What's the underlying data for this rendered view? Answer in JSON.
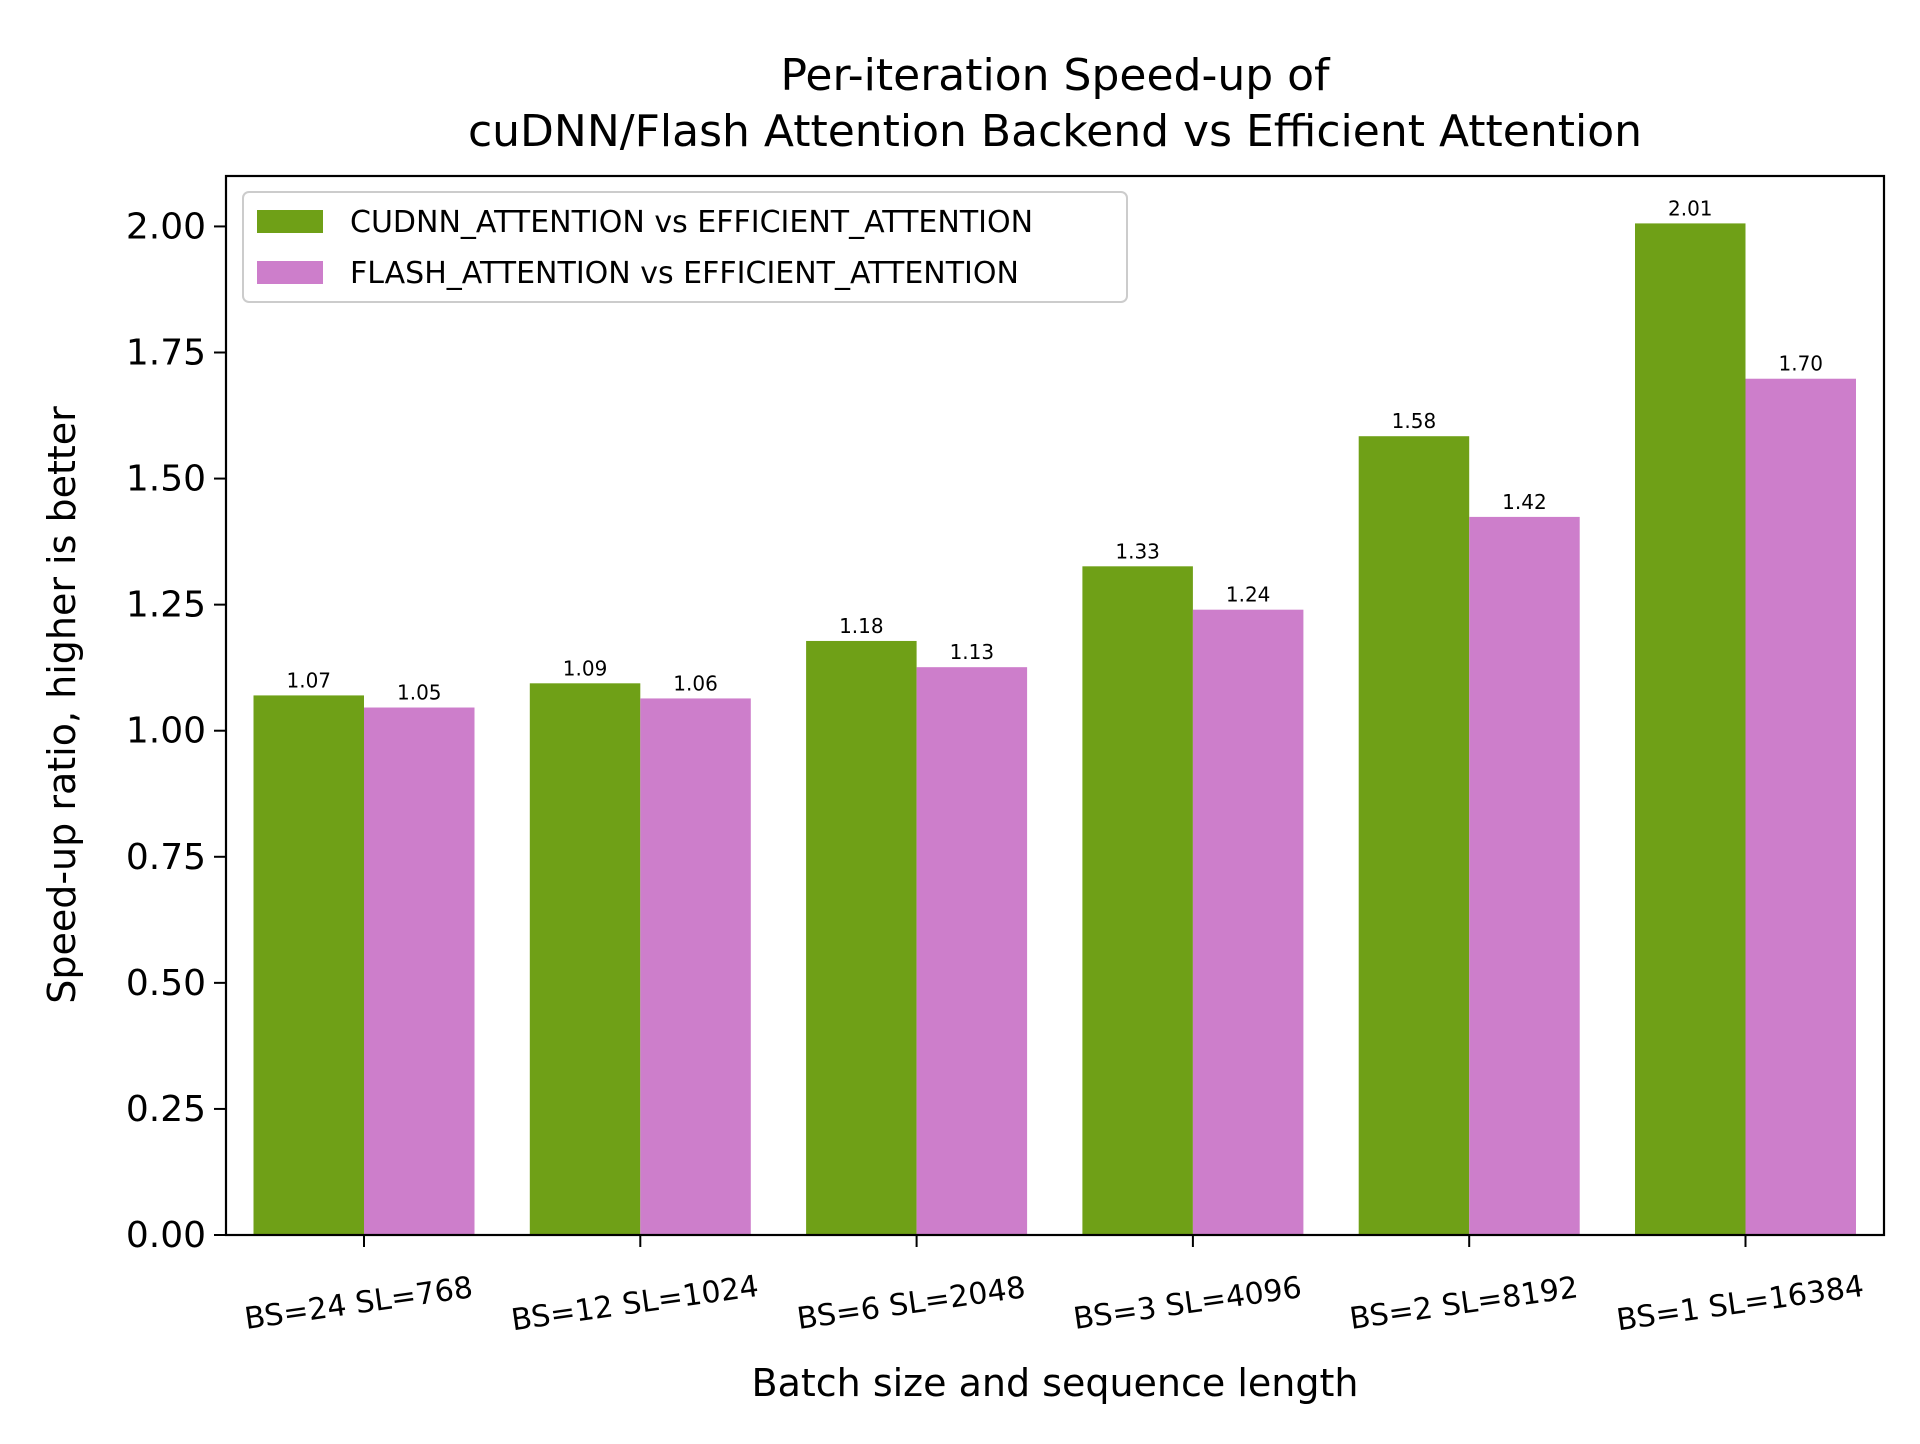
{
  "chart_data": {
    "type": "bar",
    "title": "Per-iteration Speed-up of\ncuDNN/Flash Attention Backend vs Efficient Attention",
    "xlabel": "Batch size and sequence length",
    "ylabel": "Speed-up ratio, higher is better",
    "ylim": [
      0,
      2.1
    ],
    "yticks": [
      "0.00",
      "0.25",
      "0.50",
      "0.75",
      "1.00",
      "1.25",
      "1.50",
      "1.75",
      "2.00"
    ],
    "categories": [
      "BS=24 SL=768",
      "BS=12 SL=1024",
      "BS=6 SL=2048",
      "BS=3 SL=4096",
      "BS=2 SL=8192",
      "BS=1 SL=16384"
    ],
    "series": [
      {
        "name": "CUDNN_ATTENTION vs EFFICIENT_ATTENTION",
        "color": "#6fa017",
        "values": [
          1.07,
          1.094,
          1.178,
          1.326,
          1.584,
          2.006
        ],
        "labels": [
          "1.07",
          "1.09",
          "1.18",
          "1.33",
          "1.58",
          "2.01"
        ]
      },
      {
        "name": "FLASH_ATTENTION vs EFFICIENT_ATTENTION",
        "color": "#cd7ecb",
        "values": [
          1.046,
          1.064,
          1.126,
          1.24,
          1.424,
          1.698
        ],
        "labels": [
          "1.05",
          "1.06",
          "1.13",
          "1.24",
          "1.42",
          "1.70"
        ]
      }
    ],
    "legend": "top-left",
    "grid": false
  }
}
